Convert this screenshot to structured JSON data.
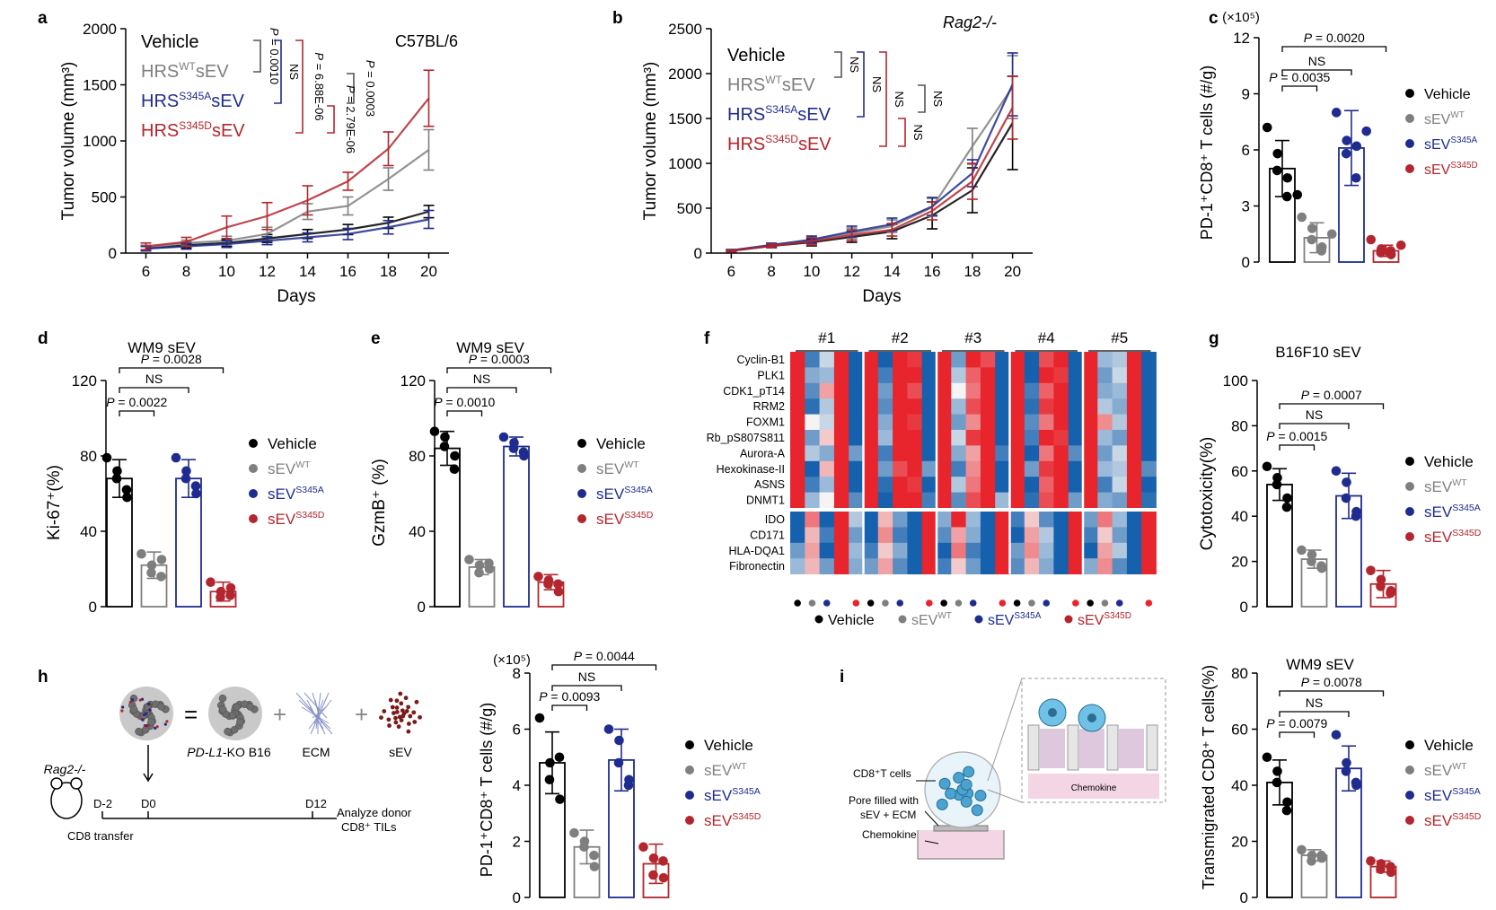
{
  "colors": {
    "vehicle": "#000000",
    "wt": "#7f7f7f",
    "s345a": "#1f2c8f",
    "s345d": "#b3262d",
    "bright_red": "#e8242c"
  },
  "legend": {
    "vehicle": "Vehicle",
    "sev": "sEV",
    "wt": "WT",
    "s345a": "S345A",
    "s345d": "S345D",
    "hrs": "HRS",
    "sev_suffix": "sEV"
  },
  "panels": {
    "a": {
      "label": "a",
      "title": "C57BL/6",
      "ylabel": "Tumor volume (mm³)",
      "xlabel": "Days",
      "sig": [
        "NS",
        "P = 0.0010",
        "P = 6.88E-06",
        "P = 0.0003",
        "P = 2.79E-06"
      ]
    },
    "b": {
      "label": "b",
      "title": "Rag2-/-",
      "ylabel": "Tumor volume (mm³)",
      "xlabel": "Days",
      "sig": [
        "NS",
        "NS",
        "NS",
        "NS",
        "NS"
      ]
    },
    "c": {
      "label": "c",
      "exponent": "(×10⁵)",
      "ylabel": "PD-1⁺CD8⁺ T cells (#/g)",
      "sig": [
        "P = 0.0020",
        "NS",
        "P = 0.0035"
      ]
    },
    "d": {
      "label": "d",
      "title": "WM9 sEV",
      "ylabel": "Ki-67⁺(%)",
      "sig": [
        "P = 0.0028",
        "NS",
        "P = 0.0022"
      ]
    },
    "e": {
      "label": "e",
      "title": "WM9 sEV",
      "ylabel": "GzmB⁺ (%)",
      "sig": [
        "P = 0.0003",
        "NS",
        "P = 0.0010"
      ]
    },
    "f": {
      "label": "f",
      "groups": [
        "#1",
        "#2",
        "#3",
        "#4",
        "#5"
      ],
      "rows_top": [
        "Cyclin-B1",
        "PLK1",
        "CDK1_pT14",
        "RRM2",
        "FOXM1",
        "Rb_pS807S811",
        "Aurora-A",
        "Hexokinase-II",
        "ASNS",
        "DNMT1"
      ],
      "rows_bottom": [
        "IDO",
        "CD171",
        "HLA-DQA1",
        "Fibronectin"
      ]
    },
    "g": {
      "label": "g",
      "title": "B16F10 sEV",
      "ylabel": "Cytotoxicity(%)",
      "sig": [
        "P = 0.0007",
        "NS",
        "P = 0.0015"
      ]
    },
    "h": {
      "label": "h",
      "exponent": "(×10⁵)",
      "ylabel": "PD-1⁺CD8⁺ T cells (#/g)",
      "sig": [
        "P = 0.0044",
        "NS",
        "P = 0.0093"
      ],
      "schematic": {
        "mouse": "Rag2-/-",
        "eq": "=",
        "plus1": "+",
        "plus2": "+",
        "ko": "PD-L1",
        "ko_suffix": "-KO B16",
        "ecm": "ECM",
        "sev": "sEV",
        "d_minus2": "D-2",
        "d0": "D0",
        "d12": "D12",
        "transfer": "CD8 transfer",
        "analyze1": "Analyze donor",
        "analyze2": "CD8⁺ TILs"
      }
    },
    "i": {
      "label": "i",
      "title": "WM9 sEV",
      "ylabel": "Transmigrated CD8⁺ T cells(%)",
      "sig": [
        "P = 0.0078",
        "NS",
        "P = 0.0079"
      ],
      "schematic": {
        "cells": "CD8⁺T cells",
        "pore1": "Pore filled with",
        "pore2": "sEV + ECM",
        "chemokine": "Chemokine",
        "chemokine_box": "Chemokine"
      }
    }
  },
  "chart_data": [
    {
      "panel": "a",
      "type": "line",
      "x": [
        6,
        8,
        10,
        12,
        14,
        16,
        18,
        20
      ],
      "xlim": [
        5,
        21
      ],
      "ylim": [
        0,
        2000
      ],
      "yticks": [
        0,
        500,
        1000,
        1500,
        2000
      ],
      "series": [
        {
          "key": "vehicle",
          "values": [
            40,
            70,
            90,
            130,
            170,
            210,
            270,
            370
          ],
          "err": [
            20,
            25,
            30,
            35,
            40,
            45,
            50,
            55
          ]
        },
        {
          "key": "wt",
          "values": [
            50,
            90,
            110,
            170,
            370,
            420,
            660,
            920
          ],
          "err": [
            20,
            25,
            40,
            60,
            70,
            80,
            100,
            180
          ]
        },
        {
          "key": "s345a",
          "values": [
            40,
            60,
            80,
            110,
            140,
            170,
            230,
            300
          ],
          "err": [
            20,
            25,
            30,
            35,
            40,
            50,
            60,
            80
          ]
        },
        {
          "key": "s345d",
          "values": [
            60,
            100,
            230,
            330,
            470,
            640,
            930,
            1380
          ],
          "err": [
            30,
            40,
            100,
            120,
            130,
            80,
            150,
            250
          ]
        }
      ]
    },
    {
      "panel": "b",
      "type": "line",
      "x": [
        6,
        8,
        10,
        12,
        14,
        16,
        18,
        20
      ],
      "xlim": [
        5,
        21
      ],
      "ylim": [
        0,
        2500
      ],
      "yticks": [
        0,
        500,
        1000,
        1500,
        2000,
        2500
      ],
      "series": [
        {
          "key": "vehicle",
          "values": [
            25,
            80,
            120,
            180,
            240,
            420,
            700,
            1450
          ],
          "err": [
            10,
            20,
            40,
            60,
            80,
            150,
            250,
            520
          ]
        },
        {
          "key": "wt",
          "values": [
            30,
            90,
            140,
            220,
            300,
            510,
            1190,
            1850
          ],
          "err": [
            10,
            20,
            40,
            60,
            70,
            100,
            200,
            350
          ]
        },
        {
          "key": "s345a",
          "values": [
            30,
            90,
            150,
            240,
            320,
            520,
            890,
            1880
          ],
          "err": [
            10,
            20,
            40,
            60,
            70,
            100,
            150,
            350
          ]
        },
        {
          "key": "s345d",
          "values": [
            25,
            80,
            130,
            200,
            260,
            470,
            800,
            1620
          ],
          "err": [
            10,
            20,
            40,
            60,
            70,
            100,
            200,
            350
          ]
        }
      ]
    },
    {
      "panel": "c",
      "type": "bar",
      "categories": [
        "vehicle",
        "wt",
        "s345a",
        "s345d"
      ],
      "ylim": [
        0,
        12
      ],
      "yticks": [
        0,
        3,
        6,
        9,
        12
      ],
      "values": [
        5.0,
        1.3,
        6.1,
        0.6
      ],
      "err": [
        1.5,
        0.8,
        2.0,
        0.3
      ],
      "points": [
        [
          7.2,
          5.8,
          4.9,
          4.5,
          3.5,
          3.6
        ],
        [
          2.4,
          1.8,
          1.2,
          0.8,
          0.6,
          1.5
        ],
        [
          8.0,
          6.5,
          5.8,
          6.2,
          4.5,
          7.0
        ],
        [
          1.2,
          0.7,
          0.5,
          0.4,
          0.6,
          0.9
        ]
      ]
    },
    {
      "panel": "d",
      "type": "bar",
      "categories": [
        "vehicle",
        "wt",
        "s345a",
        "s345d"
      ],
      "ylim": [
        0,
        120
      ],
      "yticks": [
        0,
        40,
        80,
        120
      ],
      "values": [
        68,
        22,
        68,
        8
      ],
      "err": [
        10,
        7,
        10,
        5
      ],
      "points": [
        [
          79,
          72,
          68,
          58,
          62
        ],
        [
          28,
          22,
          18,
          25,
          16
        ],
        [
          79,
          72,
          68,
          60,
          64
        ],
        [
          13,
          8,
          5,
          10,
          6
        ]
      ]
    },
    {
      "panel": "e",
      "type": "bar",
      "categories": [
        "vehicle",
        "wt",
        "s345a",
        "s345d"
      ],
      "ylim": [
        0,
        120
      ],
      "yticks": [
        0,
        40,
        80,
        120
      ],
      "values": [
        84,
        21,
        85,
        13
      ],
      "err": [
        9,
        4,
        5,
        4
      ],
      "points": [
        [
          93,
          90,
          85,
          80,
          73
        ],
        [
          25,
          22,
          18,
          20,
          23
        ],
        [
          90,
          87,
          84,
          80,
          82
        ],
        [
          16,
          14,
          12,
          8,
          12
        ]
      ]
    },
    {
      "panel": "f",
      "type": "heatmap",
      "values_top": [
        [
          1,
          -0.8,
          -0.2,
          1,
          -1,
          1,
          -1,
          1,
          0.9,
          -1,
          1,
          -0.6,
          1,
          0.8,
          -1,
          1,
          -1,
          0.8,
          1,
          -1,
          1,
          -0.4,
          -0.3,
          1,
          -1
        ],
        [
          1,
          -0.5,
          -0.4,
          1,
          -1,
          1,
          -0.8,
          1,
          1,
          -1,
          1,
          -0.3,
          0.7,
          1,
          -1,
          1,
          -1,
          1,
          0.9,
          -1,
          1,
          -0.6,
          -0.2,
          1,
          -1
        ],
        [
          1,
          -0.7,
          0.4,
          1,
          -1,
          1,
          -0.6,
          1,
          0.8,
          -1,
          1,
          0,
          0.6,
          1,
          -1,
          1,
          -0.8,
          0.7,
          1,
          -1,
          1,
          -0.5,
          -0.4,
          1,
          -1
        ],
        [
          1,
          -0.9,
          -0.3,
          1,
          -1,
          1,
          -0.7,
          1,
          1,
          -1,
          1,
          -0.4,
          0.8,
          1,
          -1,
          1,
          -0.9,
          0.9,
          1,
          -1,
          1,
          -0.3,
          -0.5,
          1,
          -1
        ],
        [
          1,
          0,
          -0.2,
          1,
          -1,
          1,
          -0.5,
          1,
          0.9,
          -1,
          1,
          -0.6,
          0.5,
          1,
          -1,
          1,
          -0.7,
          0.6,
          1,
          -1,
          1,
          0.5,
          -0.3,
          1,
          -1
        ],
        [
          1,
          -0.6,
          0.2,
          1,
          -1,
          1,
          -0.4,
          1,
          1,
          -1,
          1,
          -0.2,
          0.9,
          1,
          -1,
          1,
          -0.8,
          1,
          0.9,
          -1,
          1,
          -0.4,
          -0.6,
          1,
          -1
        ],
        [
          1,
          -0.3,
          -0.5,
          1,
          -0.6,
          1,
          -0.8,
          1,
          1,
          -1,
          1,
          -0.5,
          0.4,
          1,
          -0.8,
          1,
          -1,
          0.6,
          1,
          -0.7,
          1,
          -0.6,
          -0.2,
          1,
          -1
        ],
        [
          1,
          -1,
          0.3,
          1,
          -1,
          1,
          -0.6,
          0.8,
          1,
          -0.6,
          1,
          -0.8,
          0.5,
          1,
          -1,
          1,
          -0.6,
          0.9,
          1,
          -1,
          1,
          -0.4,
          -0.3,
          1,
          -0.7
        ],
        [
          1,
          -0.8,
          -0.4,
          1,
          -1,
          1,
          -0.9,
          1,
          0.9,
          -1,
          1,
          -0.3,
          0.6,
          1,
          -1,
          1,
          -1,
          0.7,
          1,
          -1,
          1,
          -0.8,
          -0.2,
          1,
          -1
        ],
        [
          1,
          -0.4,
          0,
          1,
          -0.7,
          1,
          -1,
          1,
          1,
          -0.8,
          1,
          -0.7,
          0.8,
          1,
          -0.4,
          1,
          -0.9,
          0.8,
          1,
          -0.6,
          1,
          -0.5,
          -0.6,
          1,
          -0.9
        ]
      ],
      "values_bottom": [
        [
          -1,
          0.6,
          -1,
          1,
          -0.3,
          -1,
          0.3,
          -0.6,
          -1,
          1,
          -0.5,
          1,
          -0.4,
          -1,
          1,
          -0.8,
          0.2,
          -0.7,
          -1,
          1,
          -0.6,
          0.6,
          -0.4,
          -1,
          1
        ],
        [
          -1,
          0.3,
          -0.8,
          1,
          -0.6,
          -1,
          0.5,
          -0.8,
          -1,
          1,
          -0.7,
          0.4,
          -0.5,
          -1,
          1,
          -1,
          0.4,
          -0.3,
          -1,
          1,
          -0.8,
          0.2,
          -0.6,
          -1,
          1
        ],
        [
          -0.6,
          0.4,
          -1,
          1,
          -0.4,
          -0.8,
          0.2,
          -0.5,
          -1,
          1,
          -1,
          0.6,
          -0.8,
          -1,
          1,
          -0.6,
          0.5,
          -0.4,
          -1,
          1,
          -1,
          0.4,
          -0.3,
          -1,
          1
        ],
        [
          -0.4,
          0.3,
          -0.6,
          1,
          -0.5,
          -0.6,
          0.4,
          -0.7,
          -1,
          1,
          -0.8,
          0.2,
          -0.6,
          -1,
          1,
          -0.7,
          0.3,
          -0.5,
          -1,
          1,
          -0.5,
          0.5,
          -0.7,
          -1,
          1
        ]
      ]
    },
    {
      "panel": "g",
      "type": "bar",
      "categories": [
        "vehicle",
        "wt",
        "s345a",
        "s345d"
      ],
      "ylim": [
        0,
        100
      ],
      "yticks": [
        0,
        20,
        40,
        60,
        80,
        100
      ],
      "values": [
        54,
        21,
        49,
        10
      ],
      "err": [
        7,
        4,
        10,
        6
      ],
      "points": [
        [
          62,
          57,
          54,
          48,
          44
        ],
        [
          25,
          23,
          20,
          17,
          18
        ],
        [
          60,
          55,
          48,
          42,
          40
        ],
        [
          16,
          12,
          9,
          7,
          6
        ]
      ]
    },
    {
      "panel": "h",
      "type": "bar",
      "categories": [
        "vehicle",
        "wt",
        "s345a",
        "s345d"
      ],
      "ylim": [
        0,
        8
      ],
      "yticks": [
        0,
        2,
        4,
        6,
        8
      ],
      "values": [
        4.8,
        1.8,
        4.9,
        1.2
      ],
      "err": [
        1.1,
        0.6,
        1.1,
        0.7
      ],
      "points": [
        [
          6.4,
          4.8,
          4.2,
          3.5,
          5.0
        ],
        [
          2.3,
          2.0,
          1.8,
          1.1,
          1.5
        ],
        [
          6.0,
          5.6,
          4.8,
          4.2,
          4.0
        ],
        [
          1.8,
          1.4,
          0.8,
          0.7,
          1.3
        ]
      ]
    },
    {
      "panel": "i",
      "type": "bar",
      "categories": [
        "vehicle",
        "wt",
        "s345a",
        "s345d"
      ],
      "ylim": [
        0,
        80
      ],
      "yticks": [
        0,
        20,
        40,
        60,
        80
      ],
      "values": [
        41,
        15,
        46,
        11
      ],
      "err": [
        8,
        2,
        8,
        2
      ],
      "points": [
        [
          50,
          45,
          41,
          34,
          31
        ],
        [
          17,
          15,
          13,
          14,
          15
        ],
        [
          58,
          48,
          45,
          40,
          41
        ],
        [
          13,
          12,
          10,
          9,
          11
        ]
      ]
    }
  ]
}
